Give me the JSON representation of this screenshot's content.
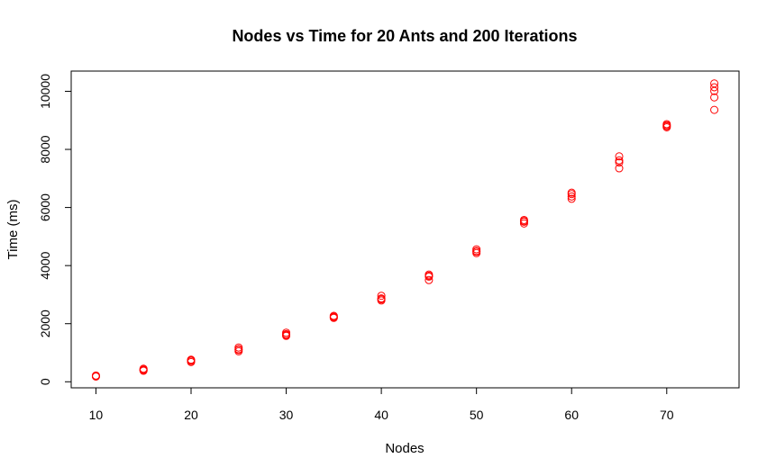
{
  "chart_data": {
    "type": "scatter",
    "title": "Nodes vs Time for 20 Ants and 200 Iterations",
    "xlabel": "Nodes",
    "ylabel": "Time (ms)",
    "xlim": [
      7.4,
      77.6
    ],
    "ylim": [
      -208,
      10696
    ],
    "x_ticks": [
      10,
      20,
      30,
      40,
      50,
      60,
      70
    ],
    "y_ticks": [
      0,
      2000,
      4000,
      6000,
      8000,
      10000
    ],
    "point_color": "#ff0000",
    "grid": false,
    "points": [
      {
        "x": 10,
        "y": 180
      },
      {
        "x": 10,
        "y": 200
      },
      {
        "x": 10,
        "y": 215
      },
      {
        "x": 10,
        "y": 190
      },
      {
        "x": 15,
        "y": 380
      },
      {
        "x": 15,
        "y": 420
      },
      {
        "x": 15,
        "y": 450
      },
      {
        "x": 15,
        "y": 400
      },
      {
        "x": 20,
        "y": 680
      },
      {
        "x": 20,
        "y": 720
      },
      {
        "x": 20,
        "y": 760
      },
      {
        "x": 20,
        "y": 740
      },
      {
        "x": 25,
        "y": 1050
      },
      {
        "x": 25,
        "y": 1120
      },
      {
        "x": 25,
        "y": 1180
      },
      {
        "x": 25,
        "y": 1100
      },
      {
        "x": 30,
        "y": 1580
      },
      {
        "x": 30,
        "y": 1640
      },
      {
        "x": 30,
        "y": 1690
      },
      {
        "x": 30,
        "y": 1610
      },
      {
        "x": 35,
        "y": 2200
      },
      {
        "x": 35,
        "y": 2240
      },
      {
        "x": 35,
        "y": 2270
      },
      {
        "x": 35,
        "y": 2220
      },
      {
        "x": 40,
        "y": 2800
      },
      {
        "x": 40,
        "y": 2870
      },
      {
        "x": 40,
        "y": 2960
      },
      {
        "x": 40,
        "y": 2840
      },
      {
        "x": 45,
        "y": 3500
      },
      {
        "x": 45,
        "y": 3620
      },
      {
        "x": 45,
        "y": 3690
      },
      {
        "x": 45,
        "y": 3650
      },
      {
        "x": 50,
        "y": 4430
      },
      {
        "x": 50,
        "y": 4500
      },
      {
        "x": 50,
        "y": 4560
      },
      {
        "x": 50,
        "y": 4480
      },
      {
        "x": 55,
        "y": 5450
      },
      {
        "x": 55,
        "y": 5510
      },
      {
        "x": 55,
        "y": 5570
      },
      {
        "x": 55,
        "y": 5530
      },
      {
        "x": 60,
        "y": 6300
      },
      {
        "x": 60,
        "y": 6380
      },
      {
        "x": 60,
        "y": 6460
      },
      {
        "x": 60,
        "y": 6510
      },
      {
        "x": 65,
        "y": 7350
      },
      {
        "x": 65,
        "y": 7550
      },
      {
        "x": 65,
        "y": 7620
      },
      {
        "x": 65,
        "y": 7760
      },
      {
        "x": 70,
        "y": 8760
      },
      {
        "x": 70,
        "y": 8830
      },
      {
        "x": 70,
        "y": 8870
      },
      {
        "x": 70,
        "y": 8800
      },
      {
        "x": 75,
        "y": 9360
      },
      {
        "x": 75,
        "y": 9790
      },
      {
        "x": 75,
        "y": 10010
      },
      {
        "x": 75,
        "y": 10140
      },
      {
        "x": 75,
        "y": 10270
      }
    ]
  }
}
